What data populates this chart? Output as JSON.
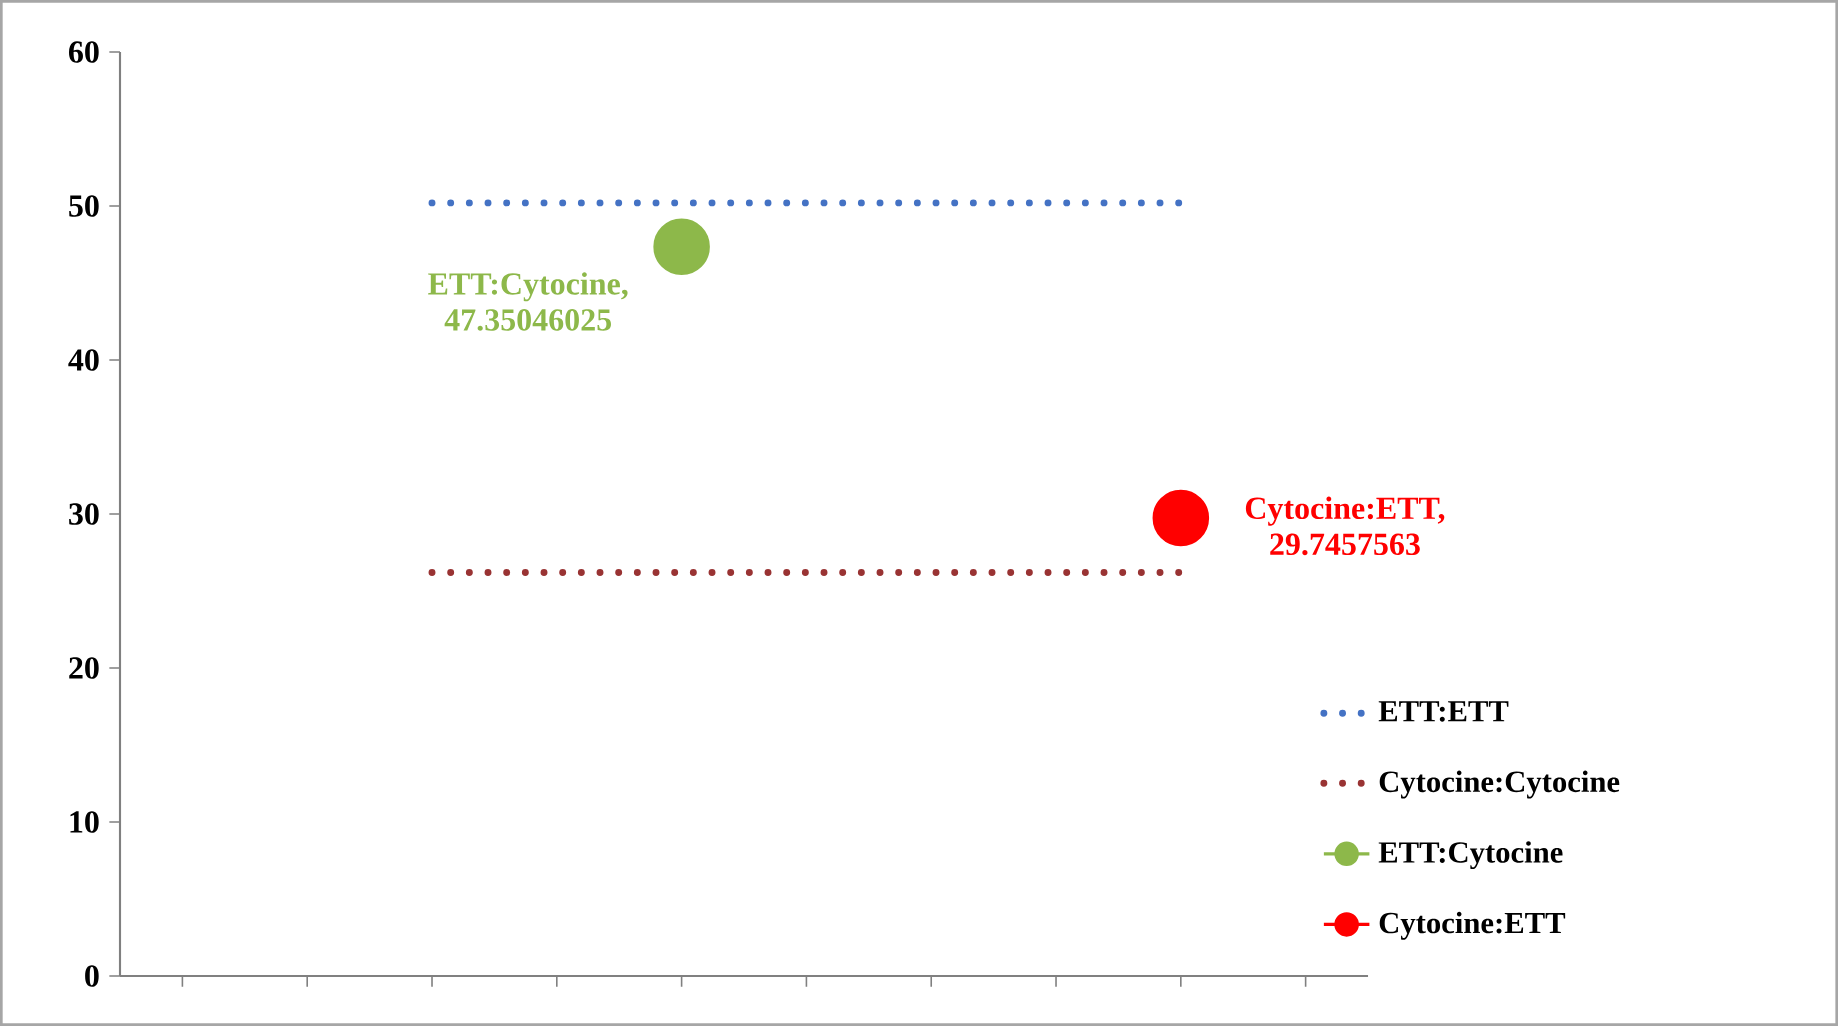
{
  "chart_data": {
    "type": "line",
    "categories": [
      null,
      null,
      null,
      null,
      null,
      null,
      null,
      null,
      null,
      null
    ],
    "ylim": [
      0,
      60
    ],
    "yticks": [
      0,
      10,
      20,
      30,
      40,
      50,
      60
    ],
    "tick_labels": "y",
    "legend": "bottom right",
    "series": [
      {
        "name": "ETT:ETT",
        "color": "#4472c4",
        "line_style": "dotted",
        "marker": "none",
        "values": [
          null,
          null,
          50.2,
          50.2,
          50.2,
          50.2,
          50.2,
          50.2,
          50.2,
          null
        ]
      },
      {
        "name": "Cytocine:Cytocine",
        "color": "#993333",
        "line_style": "dotted",
        "marker": "none",
        "values": [
          null,
          null,
          26.2,
          26.2,
          26.2,
          26.2,
          26.2,
          26.2,
          26.2,
          null
        ]
      },
      {
        "name": "ETT:Cytocine",
        "color": "#8db84a",
        "line_style": "solid",
        "marker": "circle",
        "values": [
          null,
          null,
          null,
          null,
          47.35046025,
          null,
          null,
          null,
          null,
          null
        ],
        "value_labels": [
          null,
          null,
          null,
          null,
          "ETT:Cytocine, 47.35046025",
          null,
          null,
          null,
          null,
          null
        ]
      },
      {
        "name": "Cytocine:ETT",
        "color": "#ff0000",
        "line_style": "solid",
        "marker": "circle",
        "values": [
          null,
          null,
          null,
          null,
          null,
          null,
          null,
          null,
          29.7457563,
          null
        ],
        "value_labels": [
          null,
          null,
          null,
          null,
          null,
          null,
          null,
          null,
          "Cytocine:ETT, 29.7457563",
          null
        ]
      }
    ]
  }
}
